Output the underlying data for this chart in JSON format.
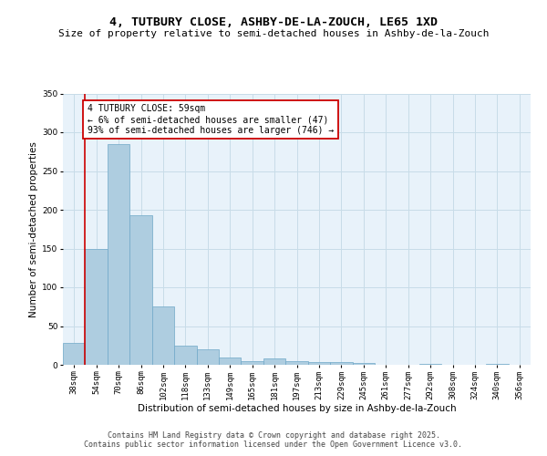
{
  "title1": "4, TUTBURY CLOSE, ASHBY-DE-LA-ZOUCH, LE65 1XD",
  "title2": "Size of property relative to semi-detached houses in Ashby-de-la-Zouch",
  "xlabel": "Distribution of semi-detached houses by size in Ashby-de-la-Zouch",
  "ylabel": "Number of semi-detached properties",
  "categories": [
    "38sqm",
    "54sqm",
    "70sqm",
    "86sqm",
    "102sqm",
    "118sqm",
    "133sqm",
    "149sqm",
    "165sqm",
    "181sqm",
    "197sqm",
    "213sqm",
    "229sqm",
    "245sqm",
    "261sqm",
    "277sqm",
    "292sqm",
    "308sqm",
    "324sqm",
    "340sqm",
    "356sqm"
  ],
  "values": [
    28,
    150,
    285,
    193,
    75,
    25,
    20,
    9,
    5,
    8,
    5,
    4,
    3,
    2,
    0,
    0,
    1,
    0,
    0,
    1,
    0
  ],
  "bar_color": "#aecde0",
  "bar_edge_color": "#6fa8c8",
  "vline_color": "#cc0000",
  "vline_x_index": 1,
  "annotation_text": "4 TUTBURY CLOSE: 59sqm\n← 6% of semi-detached houses are smaller (47)\n93% of semi-detached houses are larger (746) →",
  "annotation_box_color": "#ffffff",
  "annotation_box_edge": "#cc0000",
  "ylim": [
    0,
    350
  ],
  "yticks": [
    0,
    50,
    100,
    150,
    200,
    250,
    300,
    350
  ],
  "grid_color": "#c8dce8",
  "background_color": "#e8f2fa",
  "footer_text": "Contains HM Land Registry data © Crown copyright and database right 2025.\nContains public sector information licensed under the Open Government Licence v3.0.",
  "title1_fontsize": 9.5,
  "title2_fontsize": 8,
  "xlabel_fontsize": 7.5,
  "ylabel_fontsize": 7.5,
  "tick_fontsize": 6.5,
  "annotation_fontsize": 7,
  "footer_fontsize": 6
}
